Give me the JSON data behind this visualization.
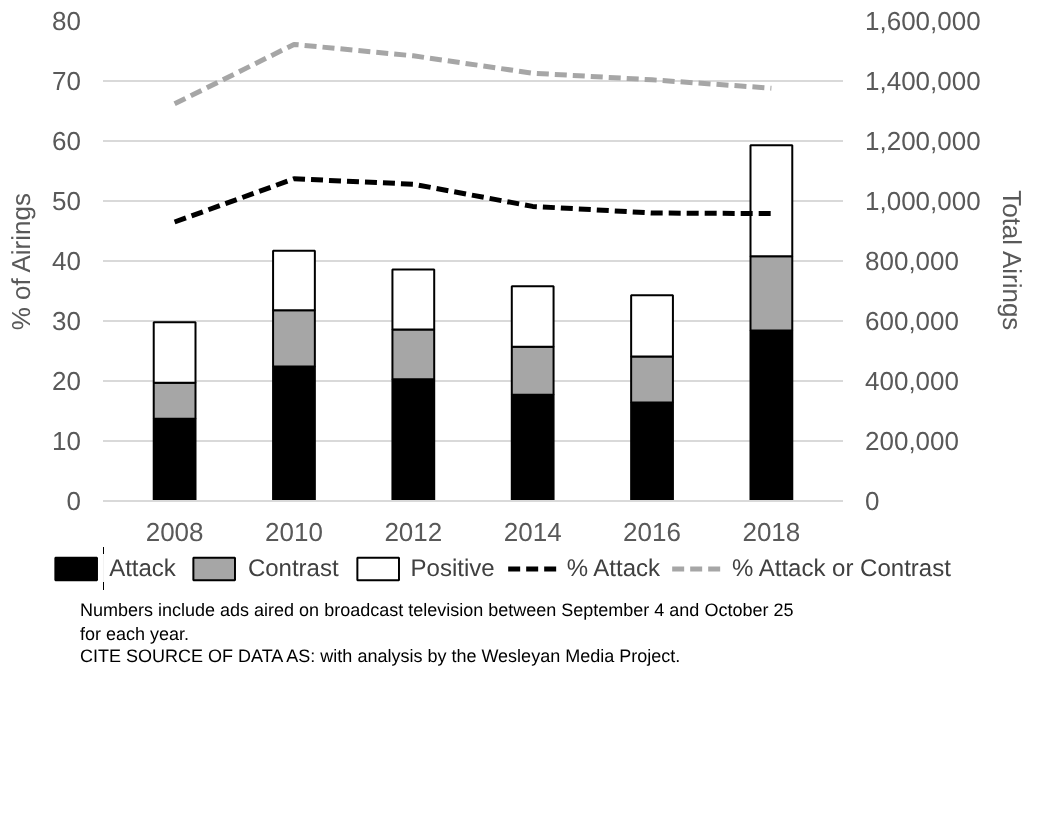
{
  "chart_data": {
    "type": "bar",
    "stacked": true,
    "categories": [
      "2008",
      "2010",
      "2012",
      "2014",
      "2016",
      "2018"
    ],
    "ylabel": "% of Airings",
    "y2label": "Total Airings",
    "ylim": [
      0,
      80
    ],
    "yticks": [
      0,
      10,
      20,
      30,
      40,
      50,
      60,
      70,
      80
    ],
    "y2lim": [
      0,
      1600000
    ],
    "y2ticks": [
      {
        "value": 0,
        "label": "0"
      },
      {
        "value": 200000,
        "label": "200,000"
      },
      {
        "value": 400000,
        "label": "400,000"
      },
      {
        "value": 600000,
        "label": "600,000"
      },
      {
        "value": 800000,
        "label": "800,000"
      },
      {
        "value": 1000000,
        "label": "1,000,000"
      },
      {
        "value": 1200000,
        "label": "1,200,000"
      },
      {
        "value": 1400000,
        "label": "1,400,000"
      },
      {
        "value": 1600000,
        "label": "1,600,000"
      }
    ],
    "grid": "y",
    "legend": "bottom",
    "series": [
      {
        "name": "Attack",
        "axis": "y2",
        "color": "#000000",
        "values": [
          274000,
          448000,
          406000,
          354000,
          328000,
          568000
        ]
      },
      {
        "name": "Contrast",
        "axis": "y2",
        "color": "#a6a6a6",
        "values": [
          120000,
          188000,
          166000,
          160000,
          154000,
          248000
        ]
      },
      {
        "name": "Positive",
        "axis": "y2",
        "color": "#ffffff",
        "values": [
          202000,
          198000,
          200000,
          202000,
          204000,
          370000
        ]
      },
      {
        "name": "% Attack",
        "type": "line",
        "color": "#000000",
        "line_style": "dashed",
        "values": [
          46.5,
          53.7,
          52.8,
          49.1,
          48.0,
          47.9
        ]
      },
      {
        "name": "% Attack or Contrast",
        "type": "line",
        "color": "#a6a6a6",
        "line_style": "dashed",
        "values": [
          66.2,
          76.1,
          74.2,
          71.3,
          70.2,
          68.8
        ]
      }
    ],
    "annotations": [
      "Numbers include ads aired on broadcast television between September 4 and October 25 for each year.",
      "CITE SOURCE OF DATA AS: with analysis by the Wesleyan Media Project."
    ]
  }
}
